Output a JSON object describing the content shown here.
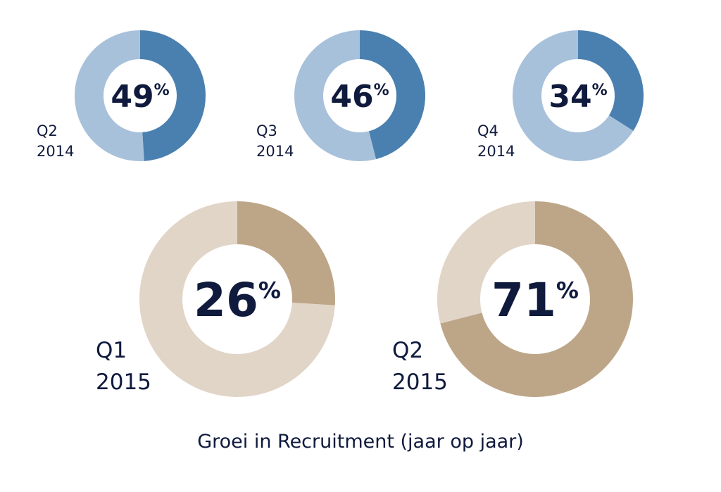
{
  "chart_data": {
    "type": "pie",
    "title": "Groei in Recruitment (jaar op jaar)",
    "unit": "%",
    "series": [
      {
        "quarter": "Q2",
        "year": "2014",
        "value": 49,
        "label": "49",
        "color_main": "#4a80b0",
        "color_rest": "#a8c1db"
      },
      {
        "quarter": "Q3",
        "year": "2014",
        "value": 46,
        "label": "46",
        "color_main": "#4a80b0",
        "color_rest": "#a8c1db"
      },
      {
        "quarter": "Q4",
        "year": "2014",
        "value": 34,
        "label": "34",
        "color_main": "#4a80b0",
        "color_rest": "#a8c1db"
      },
      {
        "quarter": "Q1",
        "year": "2015",
        "value": 26,
        "label": "26",
        "color_main": "#bda688",
        "color_rest": "#e1d5c8"
      },
      {
        "quarter": "Q2",
        "year": "2015",
        "value": 71,
        "label": "71",
        "color_main": "#bda688",
        "color_rest": "#e1d5c8"
      }
    ]
  }
}
